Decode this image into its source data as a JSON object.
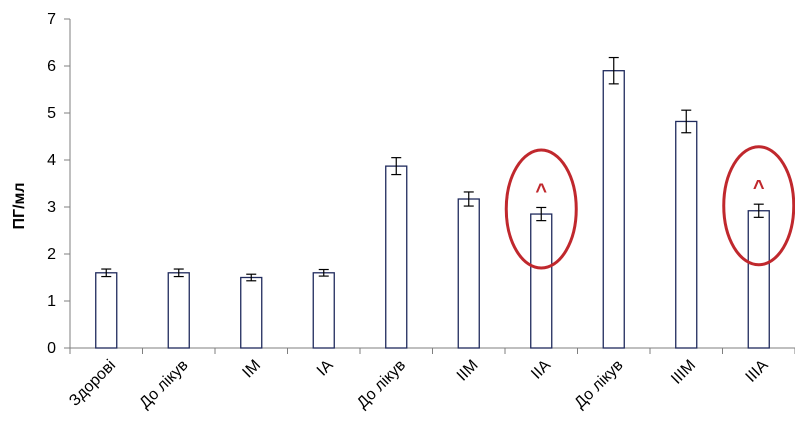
{
  "chart_data": {
    "type": "bar",
    "ylabel": "ПГ/мл",
    "xlabel": "",
    "ylim": [
      0,
      7
    ],
    "yticks": [
      0,
      1,
      2,
      3,
      4,
      5,
      6,
      7
    ],
    "grid": false,
    "categories": [
      "Здорові",
      "До лікув",
      "IM",
      "IA",
      "До лікув",
      "IIM",
      "IIA",
      "До лікув",
      "IIIM",
      "IIIA"
    ],
    "values": [
      1.6,
      1.6,
      1.5,
      1.6,
      3.87,
      3.17,
      2.85,
      5.9,
      4.82,
      2.92
    ],
    "errors": [
      0.08,
      0.08,
      0.07,
      0.07,
      0.18,
      0.15,
      0.14,
      0.28,
      0.24,
      0.14
    ],
    "annotations": [
      {
        "category_index": 6,
        "text": "^",
        "highlight": "circle"
      },
      {
        "category_index": 9,
        "text": "^",
        "highlight": "circle"
      }
    ],
    "colors": {
      "bar_fill": "#ffffff",
      "bar_stroke": "#1f2a5c",
      "axis": "#7f7f7f",
      "highlight": "#c0282d"
    }
  }
}
